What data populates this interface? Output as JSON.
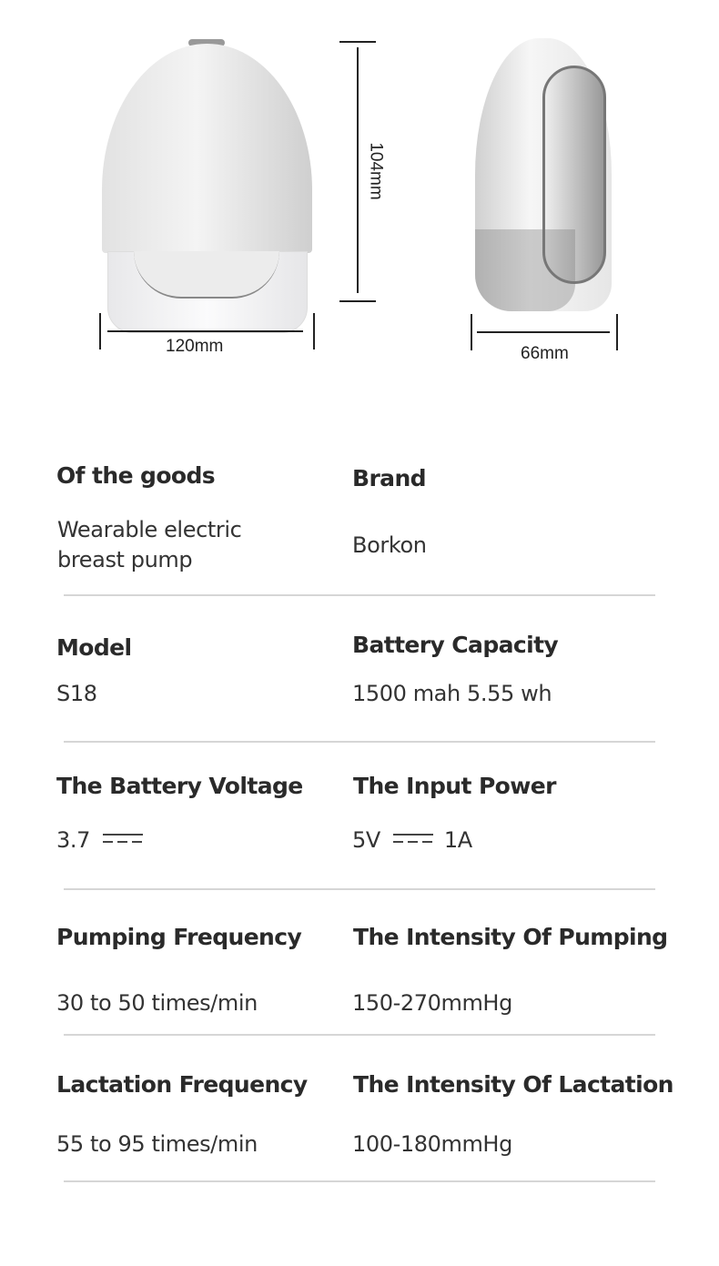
{
  "dimensions": {
    "height": "104mm",
    "width_front": "120mm",
    "width_side": "66mm"
  },
  "specs": [
    {
      "label": "Of the goods",
      "value": [
        "Wearable electric",
        "breast pump"
      ]
    },
    {
      "label": "Brand",
      "value": [
        "Borkon"
      ]
    },
    {
      "label": "Model",
      "value": [
        "S18"
      ]
    },
    {
      "label": "Battery Capacity",
      "value": [
        "1500 mah 5.55 wh"
      ]
    },
    {
      "label": "The Battery Voltage",
      "value": [
        "3.7"
      ],
      "symbol": "dc-current-icon"
    },
    {
      "label": "The Input Power",
      "value": [
        "5V",
        "1A"
      ],
      "symbol": "dc-current-icon"
    },
    {
      "label": "Pumping Frequency",
      "value": [
        "30 to 50 times/min"
      ]
    },
    {
      "label": "The Intensity Of Pumping",
      "value": [
        "150-270mmHg"
      ]
    },
    {
      "label": "Lactation Frequency",
      "value": [
        "55 to 95 times/min"
      ]
    },
    {
      "label": "The Intensity Of Lactation",
      "value": [
        "100-180mmHg"
      ]
    }
  ]
}
